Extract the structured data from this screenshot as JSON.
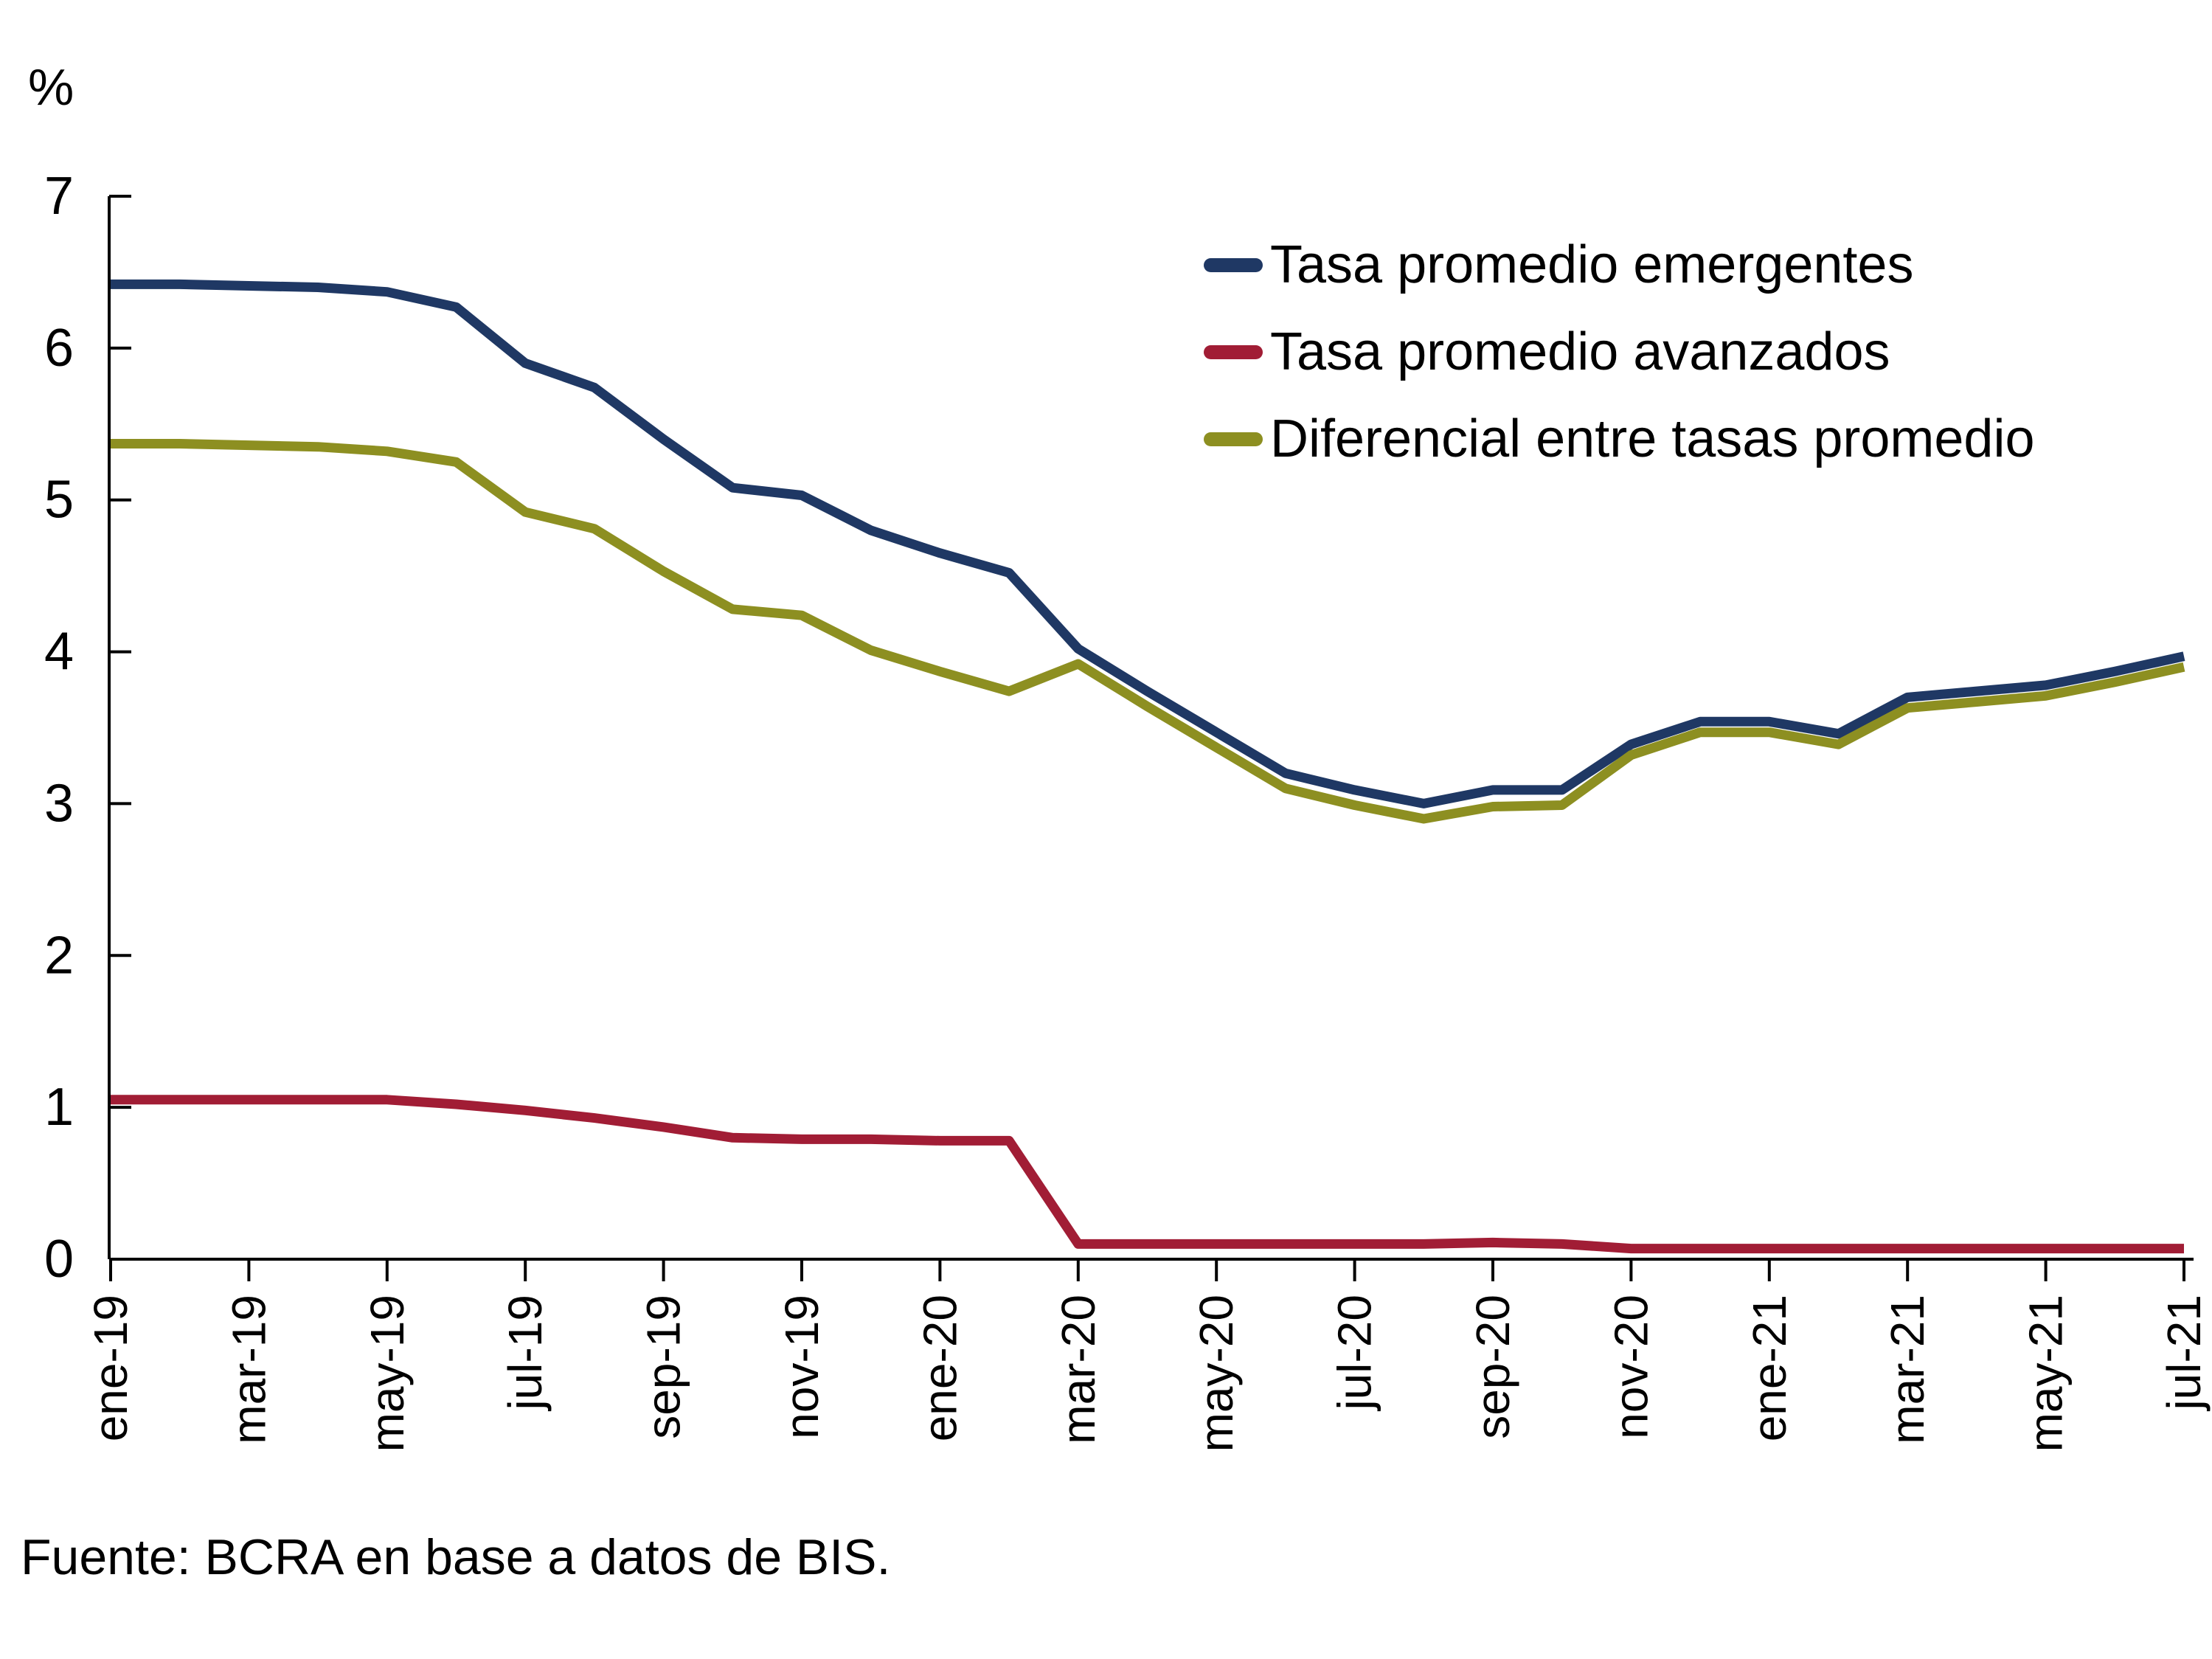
{
  "page": {
    "source_note": "Fuente: BCRA en base a datos de BIS."
  },
  "chart_data": {
    "type": "line",
    "title": "",
    "unit_label": "%",
    "xlabel": "",
    "ylabel": "%",
    "ylim": [
      0,
      7
    ],
    "y_ticks": [
      0,
      1,
      2,
      3,
      4,
      5,
      6,
      7
    ],
    "grid": false,
    "legend_position": "top-right-inside",
    "axis_color": "#000000",
    "categories": [
      "ene-19",
      "feb-19",
      "mar-19",
      "abr-19",
      "may-19",
      "jun-19",
      "jul-19",
      "ago-19",
      "sep-19",
      "oct-19",
      "nov-19",
      "dic-19",
      "ene-20",
      "feb-20",
      "mar-20",
      "abr-20",
      "may-20",
      "jun-20",
      "jul-20",
      "ago-20",
      "sep-20",
      "oct-20",
      "nov-20",
      "dic-20",
      "ene-21",
      "feb-21",
      "mar-21",
      "abr-21",
      "may-21",
      "jun-21",
      "jul-21"
    ],
    "x_tick_labels": [
      "ene-19",
      "mar-19",
      "may-19",
      "jul-19",
      "sep-19",
      "nov-19",
      "ene-20",
      "mar-20",
      "may-20",
      "jul-20",
      "sep-20",
      "nov-20",
      "ene-21",
      "mar-21",
      "may-21",
      "jul-21"
    ],
    "x_tick_every": 2,
    "series": [
      {
        "name": "Tasa promedio emergentes",
        "color": "#1f3864",
        "values": [
          6.42,
          6.42,
          6.41,
          6.4,
          6.37,
          6.27,
          5.9,
          5.74,
          5.4,
          5.08,
          5.03,
          4.8,
          4.65,
          4.52,
          4.02,
          3.74,
          3.47,
          3.2,
          3.09,
          3.0,
          3.09,
          3.09,
          3.39,
          3.54,
          3.54,
          3.46,
          3.7,
          3.74,
          3.78,
          3.87,
          3.97
        ]
      },
      {
        "name": "Tasa promedio avanzados",
        "color": "#a11d35",
        "values": [
          1.05,
          1.05,
          1.05,
          1.05,
          1.05,
          1.02,
          0.98,
          0.93,
          0.87,
          0.8,
          0.79,
          0.79,
          0.78,
          0.78,
          0.1,
          0.1,
          0.1,
          0.1,
          0.1,
          0.1,
          0.11,
          0.1,
          0.07,
          0.07,
          0.07,
          0.07,
          0.07,
          0.07,
          0.07,
          0.07,
          0.07
        ]
      },
      {
        "name": "Diferencial entre tasas promedio",
        "color": "#8d8f21",
        "values": [
          5.37,
          5.37,
          5.36,
          5.35,
          5.32,
          5.25,
          4.92,
          4.81,
          4.53,
          4.28,
          4.24,
          4.01,
          3.87,
          3.74,
          3.92,
          3.64,
          3.37,
          3.1,
          2.99,
          2.9,
          2.98,
          2.99,
          3.32,
          3.47,
          3.47,
          3.39,
          3.63,
          3.67,
          3.71,
          3.8,
          3.9
        ]
      }
    ]
  }
}
